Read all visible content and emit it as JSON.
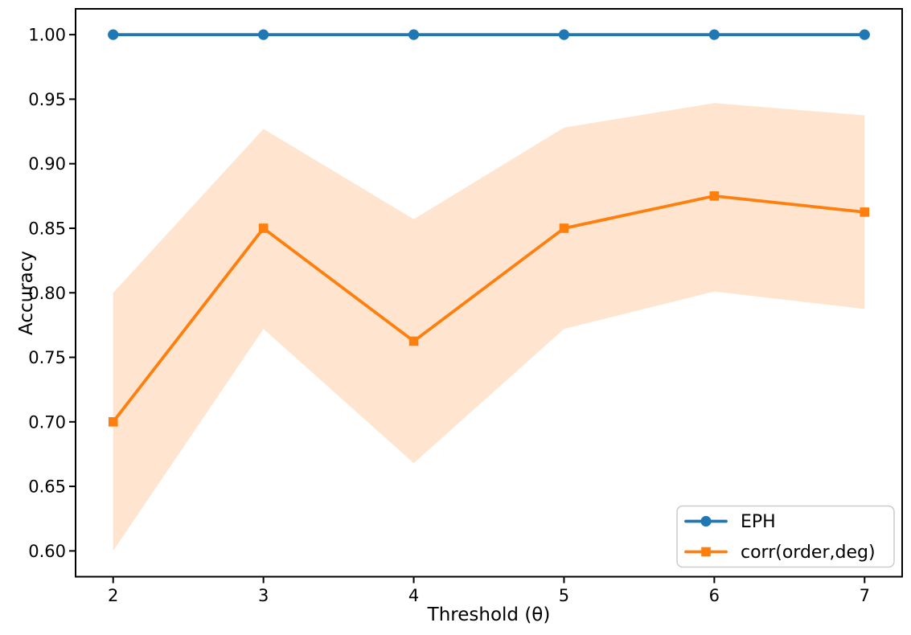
{
  "chart_data": {
    "type": "line",
    "title": "",
    "xlabel": "Threshold (θ)",
    "ylabel": "Accuracy",
    "x": [
      2,
      3,
      4,
      5,
      6,
      7
    ],
    "xlim": [
      1.75,
      7.25
    ],
    "ylim": [
      0.58,
      1.02
    ],
    "xtick_values": [
      2,
      3,
      4,
      5,
      6,
      7
    ],
    "xtick_labels": [
      "2",
      "3",
      "4",
      "5",
      "6",
      "7"
    ],
    "ytick_values": [
      0.6,
      0.65,
      0.7,
      0.75,
      0.8,
      0.85,
      0.9,
      0.95,
      1.0
    ],
    "ytick_labels": [
      "0.60",
      "0.65",
      "0.70",
      "0.75",
      "0.80",
      "0.85",
      "0.90",
      "0.95",
      "1.00"
    ],
    "grid": false,
    "series": [
      {
        "name": "EPH",
        "color": "#1f77b4",
        "marker": "circle",
        "values": [
          1.0,
          1.0,
          1.0,
          1.0,
          1.0,
          1.0
        ]
      },
      {
        "name": "corr(order,deg)",
        "color": "#ff7f0e",
        "marker": "square",
        "values": [
          0.7,
          0.85,
          0.7625,
          0.85,
          0.875,
          0.8625
        ],
        "band": {
          "upper": [
            0.8,
            0.927,
            0.857,
            0.928,
            0.947,
            0.9375
          ],
          "lower": [
            0.6,
            0.772,
            0.668,
            0.772,
            0.801,
            0.7875
          ],
          "color": "#ff7f0e",
          "opacity": 0.2
        }
      }
    ],
    "legend": {
      "position": "lower right",
      "entries": [
        "EPH",
        "corr(order,deg)"
      ]
    }
  },
  "colors": {
    "background": "#ffffff",
    "spine": "#000000",
    "tick": "#000000",
    "text": "#000000",
    "legend_border": "#cccccc",
    "legend_background": "#ffffff"
  }
}
